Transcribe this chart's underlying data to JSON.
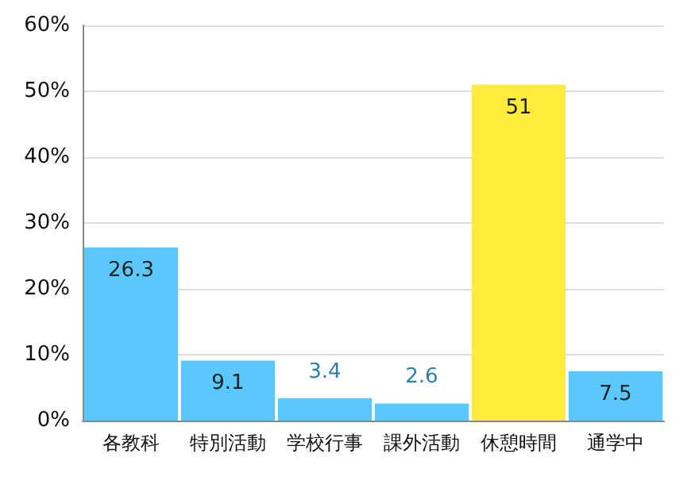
{
  "chart_data": {
    "type": "bar",
    "categories": [
      "各教科",
      "特別活動",
      "学校行事",
      "課外活動",
      "休憩時間",
      "通学中"
    ],
    "values": [
      26.3,
      9.1,
      3.4,
      2.6,
      51,
      7.5
    ],
    "colors": [
      "#5ac8fa",
      "#5ac8fa",
      "#5ac8fa",
      "#5ac8fa",
      "#ffeb3b",
      "#5ac8fa"
    ],
    "ylim": [
      0,
      60
    ],
    "yticks": [
      {
        "value": 0,
        "label": "0%"
      },
      {
        "value": 10,
        "label": "10%"
      },
      {
        "value": 20,
        "label": "20%"
      },
      {
        "value": 30,
        "label": "30%"
      },
      {
        "value": 40,
        "label": "40%"
      },
      {
        "value": 50,
        "label": "50%"
      },
      {
        "value": 60,
        "label": "60%"
      }
    ],
    "grid": "y",
    "data_labels": true
  }
}
